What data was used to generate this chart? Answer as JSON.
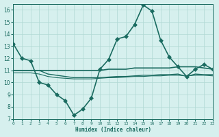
{
  "xlabel": "Humidex (Indice chaleur)",
  "ylabel": "",
  "background_color": "#d6f0ee",
  "grid_color": "#b0d8d4",
  "line_color": "#1a6b60",
  "xlim": [
    0,
    23
  ],
  "ylim": [
    7,
    16.5
  ],
  "yticks": [
    7,
    8,
    9,
    10,
    11,
    12,
    13,
    14,
    15,
    16
  ],
  "xticks": [
    0,
    1,
    2,
    3,
    4,
    5,
    6,
    7,
    8,
    9,
    10,
    11,
    12,
    13,
    14,
    15,
    16,
    17,
    18,
    19,
    20,
    21,
    22,
    23
  ],
  "series": [
    {
      "x": [
        0,
        1,
        2,
        3,
        4,
        5,
        6,
        7,
        8,
        9,
        10,
        11,
        12,
        13,
        14,
        15,
        16,
        17,
        18,
        19,
        20,
        21,
        22,
        23
      ],
      "y": [
        13.2,
        12.0,
        11.8,
        10.0,
        9.8,
        9.0,
        8.5,
        7.3,
        7.8,
        8.7,
        11.1,
        11.9,
        13.6,
        13.8,
        14.8,
        16.4,
        15.9,
        13.5,
        12.1,
        11.3,
        10.5,
        11.1,
        11.5,
        11.1
      ],
      "marker": "D",
      "markersize": 3,
      "linewidth": 1.2
    },
    {
      "x": [
        0,
        1,
        2,
        3,
        4,
        5,
        6,
        7,
        8,
        9,
        10,
        11,
        12,
        13,
        14,
        15,
        16,
        17,
        18,
        19,
        20,
        21,
        22,
        23
      ],
      "y": [
        11.0,
        11.0,
        11.0,
        11.0,
        11.0,
        11.0,
        11.0,
        11.0,
        11.0,
        11.0,
        11.0,
        11.1,
        11.1,
        11.1,
        11.2,
        11.2,
        11.2,
        11.2,
        11.2,
        11.3,
        11.3,
        11.3,
        11.2,
        11.1
      ],
      "marker": null,
      "markersize": 0,
      "linewidth": 1.2
    },
    {
      "x": [
        0,
        1,
        2,
        3,
        4,
        5,
        6,
        7,
        8,
        9,
        10,
        11,
        12,
        13,
        14,
        15,
        16,
        17,
        18,
        19,
        20,
        21,
        22,
        23
      ],
      "y": [
        11.0,
        11.0,
        11.0,
        11.0,
        10.7,
        10.6,
        10.5,
        10.4,
        10.4,
        10.4,
        10.4,
        10.45,
        10.5,
        10.5,
        10.55,
        10.6,
        10.6,
        10.65,
        10.65,
        10.7,
        10.5,
        10.7,
        10.65,
        10.65
      ],
      "marker": null,
      "markersize": 0,
      "linewidth": 1.0
    },
    {
      "x": [
        0,
        1,
        2,
        3,
        4,
        5,
        6,
        7,
        8,
        9,
        10,
        11,
        12,
        13,
        14,
        15,
        16,
        17,
        18,
        19,
        20,
        21,
        22,
        23
      ],
      "y": [
        10.8,
        10.8,
        10.8,
        10.7,
        10.5,
        10.4,
        10.35,
        10.3,
        10.3,
        10.3,
        10.35,
        10.4,
        10.4,
        10.45,
        10.5,
        10.5,
        10.55,
        10.55,
        10.6,
        10.6,
        10.55,
        10.6,
        10.6,
        10.55
      ],
      "marker": null,
      "markersize": 0,
      "linewidth": 0.8
    }
  ]
}
